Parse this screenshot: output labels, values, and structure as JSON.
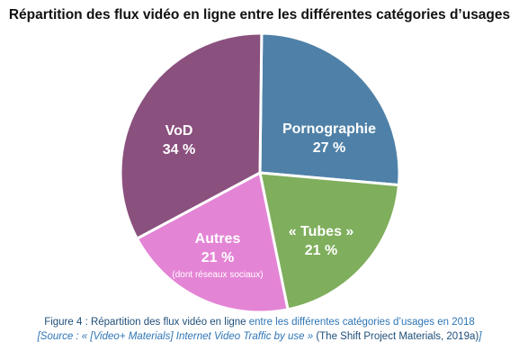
{
  "chart_data": {
    "type": "pie",
    "title": "Répartition des flux vidéo en ligne entre les différentes catégories d’usages",
    "slices": [
      {
        "label": "Pornographie",
        "value": 27,
        "value_label": "27 %",
        "note": "",
        "color": "#4f81a8"
      },
      {
        "label": "« Tubes »",
        "value": 21,
        "value_label": "21 %",
        "note": "",
        "color": "#7fae5c"
      },
      {
        "label": "Autres",
        "value": 21,
        "value_label": "21 %",
        "note": "(dont réseaux sociaux)",
        "color": "#e484d5"
      },
      {
        "label": "VoD",
        "value": 34,
        "value_label": "34 %",
        "note": "",
        "color": "#8a507e"
      }
    ]
  },
  "caption": {
    "figure_prefix": "Figure 4 : Répartition des flux vidéo en ligne ",
    "figure_rest": "entre les différentes catégories d’usages en 2018",
    "source_italic": "[Source : « [Video+ Materials] Internet Video Traffic by use » ",
    "source_plain": "(The Shift Project Materials, 2019a)",
    "source_end": "]"
  }
}
